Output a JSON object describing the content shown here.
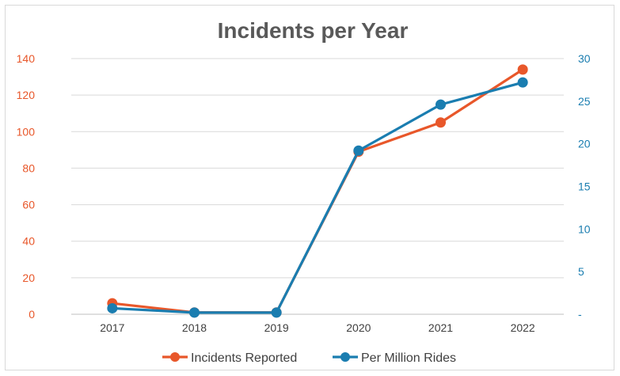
{
  "chart_data": {
    "type": "line",
    "title": "Incidents per Year",
    "categories": [
      "2017",
      "2018",
      "2019",
      "2020",
      "2021",
      "2022"
    ],
    "series": [
      {
        "name": "Incidents Reported",
        "axis": "left",
        "color": "#e8572a",
        "values": [
          6,
          1,
          1,
          89,
          105,
          134
        ]
      },
      {
        "name": "Per Million Rides",
        "axis": "right",
        "color": "#1a7db0",
        "values": [
          0.7,
          0.2,
          0.2,
          19.2,
          24.6,
          27.2
        ]
      }
    ],
    "y_left": {
      "min": 0,
      "max": 140,
      "step": 20,
      "tick_labels": [
        "0",
        "20",
        "40",
        "60",
        "80",
        "100",
        "120",
        "140"
      ]
    },
    "y_right": {
      "min": 0,
      "max": 30,
      "step": 5,
      "tick_labels": [
        "-",
        "5",
        "10",
        "15",
        "20",
        "25",
        "30"
      ]
    },
    "grid": true,
    "legend_position": "bottom"
  }
}
